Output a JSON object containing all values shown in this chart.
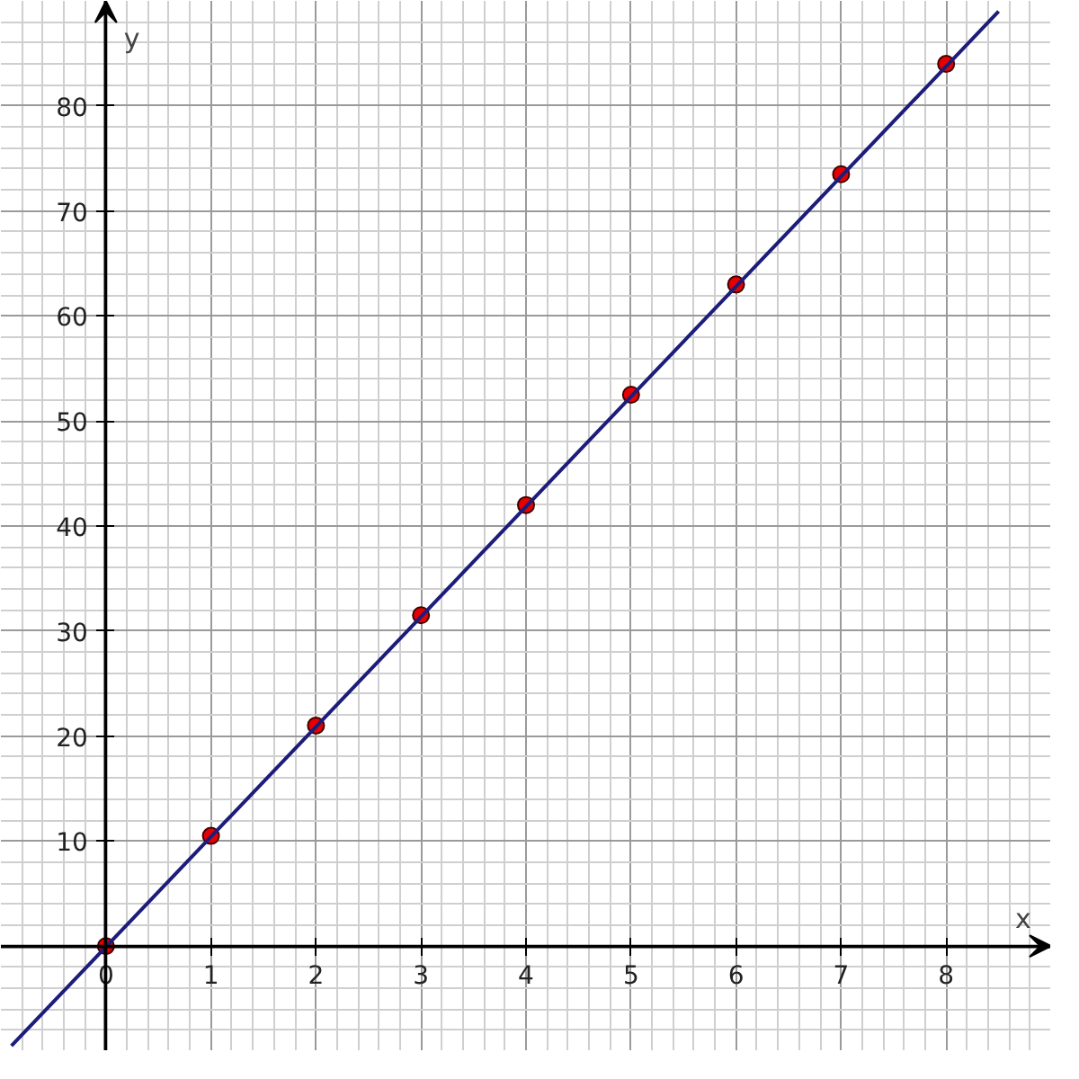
{
  "chart_data": {
    "type": "scatter",
    "xlabel": "x",
    "ylabel": "y",
    "x": [
      0,
      1,
      2,
      3,
      4,
      5,
      6,
      7,
      8
    ],
    "series": [
      {
        "color": "#e60000",
        "marker": "circle",
        "values": [
          0,
          10.5,
          21,
          31.5,
          42,
          52.5,
          63,
          73.5,
          84
        ]
      },
      {
        "type": "line",
        "color": "#1c1c7a",
        "marker": "none",
        "x": [
          -0.9,
          8.5
        ],
        "values": [
          -9.5,
          89
        ]
      }
    ],
    "line_style": "solid",
    "grid": true,
    "xlim": [
      -1,
      9
    ],
    "ylim": [
      -10,
      90
    ],
    "xticks": [
      0,
      1,
      2,
      3,
      4,
      5,
      6,
      7,
      8
    ],
    "yticks": [
      10,
      20,
      30,
      40,
      50,
      60,
      70,
      80
    ]
  }
}
